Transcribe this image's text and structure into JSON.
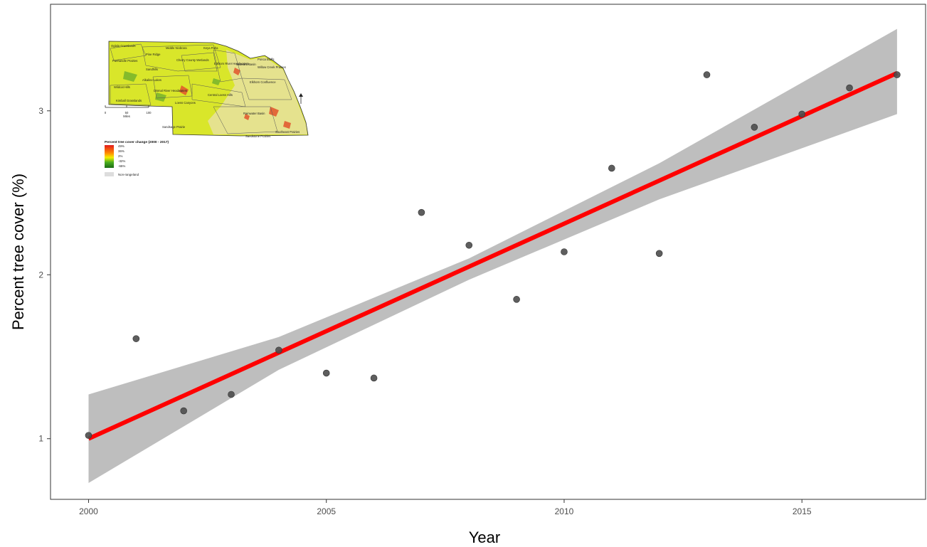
{
  "chart_data": {
    "type": "scatter",
    "title": "",
    "xlabel": "Year",
    "ylabel": "Percent tree cover (%)",
    "xlim": [
      1999.2,
      2017.6
    ],
    "ylim": [
      0.63,
      3.65
    ],
    "x_ticks": [
      2000,
      2005,
      2010,
      2015
    ],
    "y_ticks": [
      1,
      2,
      3
    ],
    "grid": false,
    "points": {
      "x": [
        2000,
        2001,
        2002,
        2003,
        2004,
        2005,
        2006,
        2007,
        2008,
        2009,
        2010,
        2011,
        2012,
        2013,
        2014,
        2015,
        2016,
        2017
      ],
      "y": [
        1.02,
        1.61,
        1.17,
        1.27,
        1.54,
        1.4,
        1.37,
        2.38,
        2.18,
        1.85,
        2.14,
        2.65,
        2.13,
        3.22,
        2.9,
        2.98,
        3.14,
        3.22
      ]
    },
    "trend_line": {
      "type": "linear fit",
      "x": [
        2000,
        2017
      ],
      "y": [
        1.0,
        3.23
      ],
      "color": "#ff0000"
    },
    "confidence_band": {
      "color": "#bebebe",
      "x": [
        2000,
        2004,
        2008,
        2012,
        2017
      ],
      "upper": [
        1.27,
        1.62,
        2.1,
        2.68,
        3.5
      ],
      "lower": [
        0.73,
        1.42,
        1.97,
        2.46,
        2.98
      ]
    },
    "colors": {
      "points": "#4d4d4d",
      "line": "#ff0000",
      "band": "#bebebe",
      "axis": "#333333"
    }
  },
  "inset_map": {
    "region_labels": [
      "Oglala Grasslands",
      "Pine Ridge",
      "Middle Niobrara",
      "Keya Paha",
      "Panhandle Prairies",
      "Cherry County Wetlands",
      "Elkhorn River Headwaters",
      "Niobrara Basin",
      "Ponca Bluffs",
      "Willow Creek Prairies",
      "Sandhills",
      "Alkaline Lakes",
      "Elkhorn Confluence",
      "Wildcat Hills",
      "Dismal River Headwaters",
      "Central Loess Hills",
      "Kimball Grasslands",
      "Loess Canyons",
      "Rainwater Basin",
      "Sandsage Prairie",
      "Southeast Prairies",
      "Sandstone Prairies"
    ],
    "scale_ticks": [
      "0",
      "50",
      "100"
    ],
    "scale_unit": "Miles",
    "legend_title": "Percent tree cover change (2000 - 2017)",
    "legend_values": [
      "49%",
      "36%",
      "2%",
      "-32%",
      "-65%"
    ],
    "non_rangeland_label": "Non-rangeland"
  }
}
